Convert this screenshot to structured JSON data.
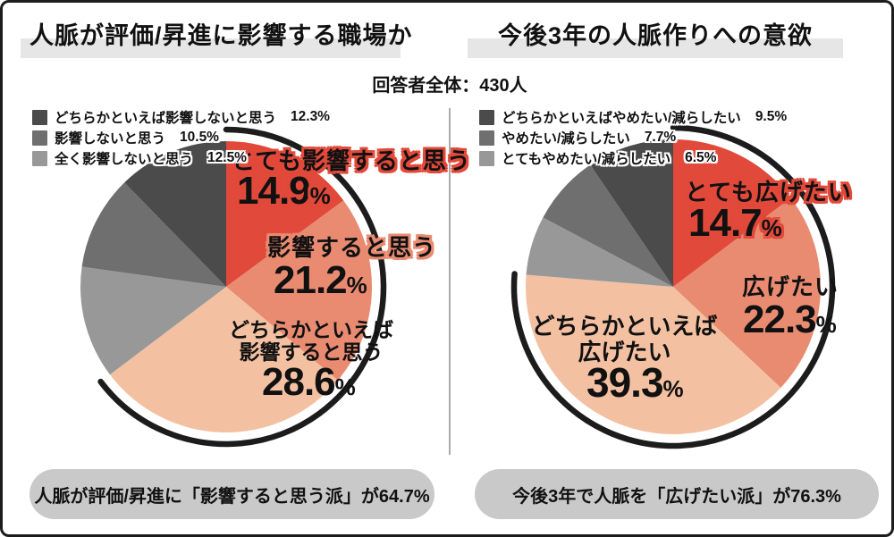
{
  "header": {
    "respondents": "回答者全体：430人"
  },
  "percent_sign": "%",
  "panels": [
    {
      "title": "人脈が評価/昇進に影響する職場か",
      "legend": [
        {
          "label": "どちらかといえば影響しないと思う",
          "value": "12.3%",
          "color": "#4b4b4b"
        },
        {
          "label": "影響しないと思う",
          "value": "10.5%",
          "color": "#6f6f6f"
        },
        {
          "label": "全く影響しないと思う",
          "value": "12.5%",
          "color": "#989898"
        }
      ],
      "slice_labels": [
        {
          "text": "とても影響すると思う",
          "value": "14.9",
          "unit": "%"
        },
        {
          "text": "影響すると思う",
          "value": "21.2",
          "unit": "%"
        },
        {
          "text_line1": "どちらかといえば",
          "text_line2": "影響すると思う",
          "value": "28.6",
          "unit": "%"
        }
      ],
      "summary": "人脈が評価/昇進に「影響すると思う派」が64.7%"
    },
    {
      "title": "今後3年の人脈作りへの意欲",
      "legend": [
        {
          "label": "どちらかといえばやめたい/減らしたい",
          "value": "9.5%",
          "color": "#4b4b4b"
        },
        {
          "label": "やめたい/減らしたい",
          "value": "7.7%",
          "color": "#6f6f6f"
        },
        {
          "label": "とてもやめたい/減らしたい",
          "value": "6.5%",
          "color": "#989898"
        }
      ],
      "slice_labels": [
        {
          "text": "とても広げたい",
          "value": "14.7",
          "unit": "%"
        },
        {
          "text": "広げたい",
          "value": "22.3",
          "unit": "%"
        },
        {
          "text_line1": "どちらかといえば",
          "text_line2": "広げたい",
          "value": "39.3",
          "unit": "%"
        }
      ],
      "summary": "今後3年で人脈を「広げたい派」が76.3%"
    }
  ],
  "chart_data": [
    {
      "type": "pie",
      "title": "人脈が評価/昇進に影響する職場か",
      "unit": "%",
      "clockwise_from_top": true,
      "slices": [
        {
          "label": "とても影響すると思う",
          "value": 14.9,
          "color": "#e1493a"
        },
        {
          "label": "影響すると思う",
          "value": 21.2,
          "color": "#e98b71"
        },
        {
          "label": "どちらかといえば影響すると思う",
          "value": 28.6,
          "color": "#f3c1a2"
        },
        {
          "label": "全く影響しないと思う",
          "value": 12.5,
          "color": "#989898"
        },
        {
          "label": "影響しないと思う",
          "value": 10.5,
          "color": "#6f6f6f"
        },
        {
          "label": "どちらかといえば影響しないと思う",
          "value": 12.3,
          "color": "#4b4b4b"
        }
      ],
      "highlight_arc": {
        "start_pct": 0,
        "end_pct": 64.7,
        "color": "#1c1c1c"
      },
      "annotation": "人脈が評価/昇進に「影響すると思う派」が64.7%"
    },
    {
      "type": "pie",
      "title": "今後3年の人脈作りへの意欲",
      "unit": "%",
      "clockwise_from_top": true,
      "slices": [
        {
          "label": "とても広げたい",
          "value": 14.7,
          "color": "#e1493a"
        },
        {
          "label": "広げたい",
          "value": 22.3,
          "color": "#e98b71"
        },
        {
          "label": "どちらかといえば広げたい",
          "value": 39.3,
          "color": "#f3c1a2"
        },
        {
          "label": "とてもやめたい/減らしたい",
          "value": 6.5,
          "color": "#989898"
        },
        {
          "label": "やめたい/減らしたい",
          "value": 7.7,
          "color": "#6f6f6f"
        },
        {
          "label": "どちらかといえばやめたい/減らしたい",
          "value": 9.5,
          "color": "#4b4b4b"
        }
      ],
      "highlight_arc": {
        "start_pct": 0,
        "end_pct": 76.3,
        "color": "#1c1c1c"
      },
      "annotation": "今後3年で人脈を「広げたい派」が76.3%"
    }
  ]
}
